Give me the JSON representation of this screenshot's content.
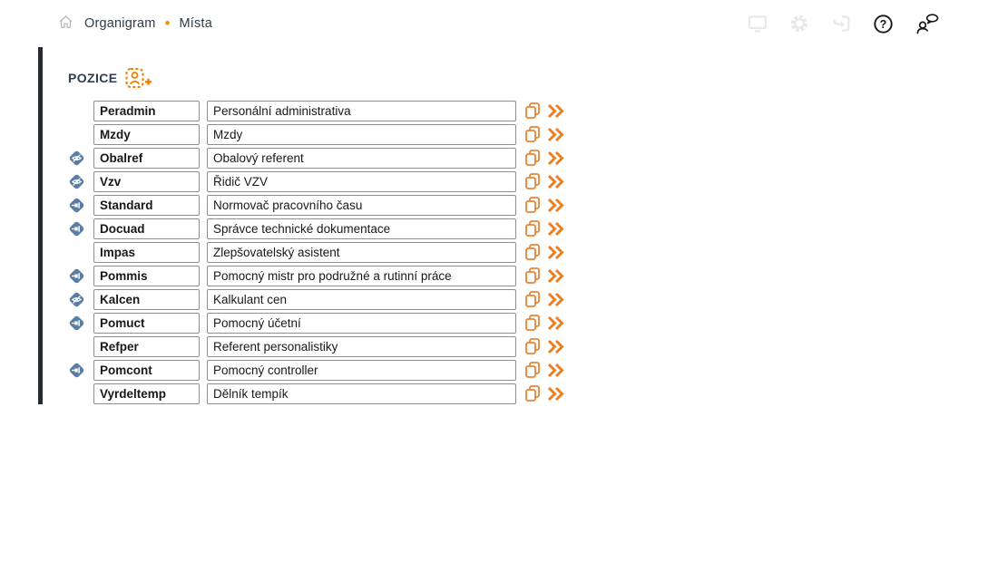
{
  "topbar": {
    "breadcrumb": {
      "app": "Organigram",
      "separator": "•",
      "page": "Místa"
    },
    "home_icon": "home-icon",
    "help_glyph": "?",
    "right_icons": [
      {
        "name": "monitor-icon",
        "enabled": false
      },
      {
        "name": "settings-gear-icon",
        "enabled": false
      },
      {
        "name": "sign-out-icon",
        "enabled": false
      },
      {
        "name": "help-icon",
        "enabled": true
      },
      {
        "name": "feedback-user-icon",
        "enabled": true
      }
    ]
  },
  "positions": {
    "section_title": "POZICE",
    "add_icon": "add-position-icon",
    "row_action_icons": {
      "copy": "copy-icon",
      "forward": "double-chevron-icon"
    },
    "badge_icons": {
      "hidden": "hidden-eye-diamond-icon",
      "pinned": "pin-diamond-icon"
    },
    "rows": [
      {
        "code": "Peradmin",
        "name": "Personální administrativa",
        "badge": null
      },
      {
        "code": "Mzdy",
        "name": "Mzdy",
        "badge": null
      },
      {
        "code": "Obalref",
        "name": "Obalový referent",
        "badge": "hidden"
      },
      {
        "code": "Vzv",
        "name": "Řidič VZV",
        "badge": "hidden"
      },
      {
        "code": "Standard",
        "name": "Normovač pracovního času",
        "badge": "pinned"
      },
      {
        "code": "Docuad",
        "name": "Správce technické dokumentace",
        "badge": "pinned"
      },
      {
        "code": "Impas",
        "name": "Zlepšovatelský asistent",
        "badge": null
      },
      {
        "code": "Pommis",
        "name": "Pomocný mistr pro podružné a rutinní práce",
        "badge": "pinned"
      },
      {
        "code": "Kalcen",
        "name": "Kalkulant cen",
        "badge": "hidden"
      },
      {
        "code": "Pomuct",
        "name": "Pomocný účetní",
        "badge": "pinned"
      },
      {
        "code": "Refper",
        "name": "Referent personalistiky",
        "badge": null
      },
      {
        "code": "Pomcont",
        "name": "Pomocný controller",
        "badge": "pinned"
      },
      {
        "code": "Vyrdeltemp",
        "name": "Dělník tempík",
        "badge": null
      }
    ]
  },
  "colors": {
    "accent_orange": "#ee7f00",
    "action_orange": "#e98436",
    "badge_blue": "#5a7ea3",
    "text_dark": "#2e3b49",
    "disabled_icon": "#e8e8e8"
  }
}
